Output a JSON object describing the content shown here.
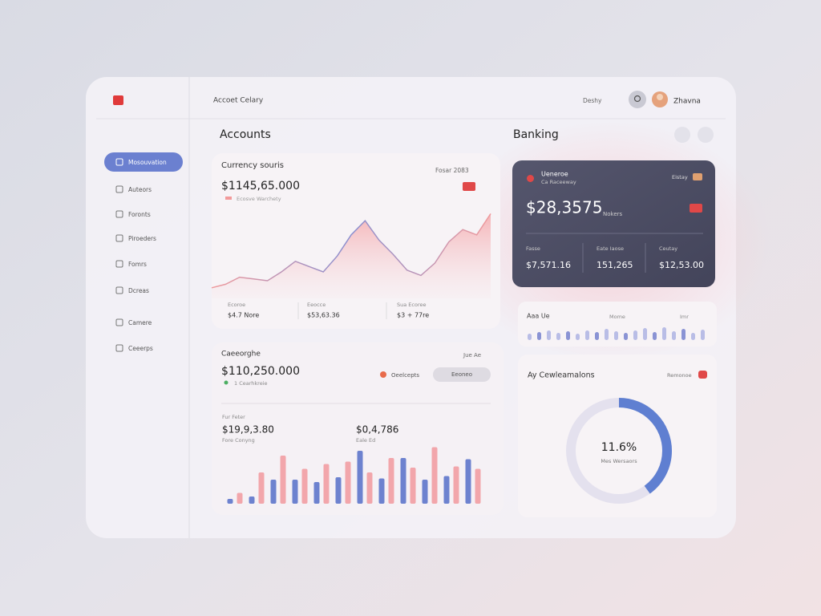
{
  "header": {
    "title": "Accoet Celary",
    "dropdown": "Deshy",
    "user": "Zhavna"
  },
  "sidebar": [
    "Mosouvation",
    "Auteors",
    "Foronts",
    "Piroeders",
    "Fomrs",
    "Dcreas",
    "Camere",
    "Ceeerps"
  ],
  "sections": {
    "accounts": "Accounts",
    "banking": "Banking"
  },
  "currency_card": {
    "title": "Currency souris",
    "period": "Fosar 2083",
    "amount": "$1145,65.000",
    "legend": "Ecosve Warchety",
    "area_values": [
      12,
      16,
      24,
      22,
      20,
      30,
      42,
      36,
      30,
      48,
      72,
      88,
      66,
      50,
      32,
      26,
      40,
      64,
      78,
      72,
      96
    ],
    "stats": [
      {
        "label": "Ecoroe",
        "value": "$4.7 Nore"
      },
      {
        "label": "Eeocce",
        "value": "$53,63.36"
      },
      {
        "label": "Sua Ecoree",
        "value": "$3 + 77re"
      }
    ]
  },
  "overview_card": {
    "title": "Caeeorghe",
    "period": "Jue Ae",
    "amount": "$110,250.000",
    "note": "1 Cearhkreie",
    "legend": "Oeelcepts",
    "button": "Eeoneo",
    "stats": [
      {
        "label": "Fur Feter",
        "value": "$19,9,3.80",
        "sub": "Fore Conyng"
      },
      {
        "value": "$0,4,786",
        "sub": "Eale Ed"
      }
    ],
    "bars": {
      "blue": [
        8,
        12,
        40,
        40,
        36,
        44,
        88,
        42,
        76,
        40,
        46,
        74
      ],
      "pink": [
        18,
        52,
        80,
        58,
        66,
        70,
        52,
        76,
        60,
        94,
        62,
        58
      ]
    }
  },
  "bank_card": {
    "name": "Ueneroe",
    "subtitle": "Ca Raceeway",
    "tag": "Eistay",
    "amount": "$28,3575",
    "note": "Nokers",
    "stats": [
      {
        "label": "Fasse",
        "value": "$7,571.16"
      },
      {
        "label": "Eate Iaose",
        "value": "151,265"
      },
      {
        "label": "Ceutay",
        "value": "$12,53.00"
      }
    ]
  },
  "activity": {
    "title": "Aaa Ue",
    "label1": "Mome",
    "label2": "Imr",
    "values": [
      40,
      50,
      60,
      45,
      55,
      40,
      60,
      50,
      70,
      55,
      45,
      60,
      75,
      50,
      80,
      55,
      70,
      45,
      65
    ]
  },
  "ring": {
    "title": "Ay Cewleamalons",
    "tag": "Remonoe",
    "center": "11.6%",
    "sub": "Mes Wersaors",
    "value": 40
  }
}
